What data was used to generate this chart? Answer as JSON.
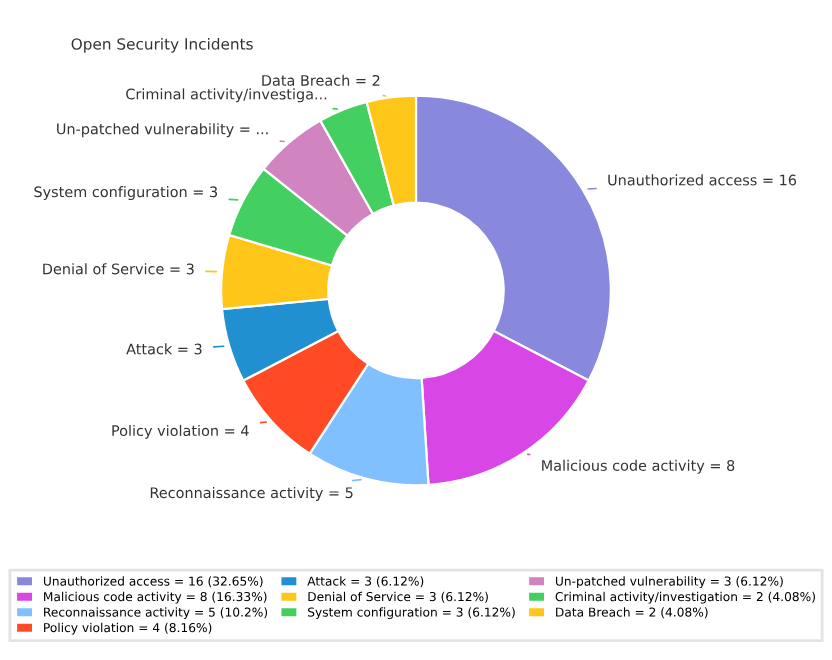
{
  "chart_data": {
    "type": "donut",
    "title": "Open Security Incidents",
    "categories": [
      "Unauthorized access = 16 (32.65%)",
      "Malicious code activity = 8 (16.33%)",
      "Reconnaissance activity = 5 (10.2%)",
      "Policy violation = 4 (8.16%)",
      "Attack = 3 (6.12%)",
      "Denial of Service = 3 (6.12%)",
      "System configuration = 3 (6.12%)",
      "Un-patched vulnerability = 3 (6.12%)",
      "Criminal activity/investigation = 2 (4.08%)",
      "Data Breach = 2 (4.08%)"
    ],
    "values": [
      16,
      8,
      5,
      4,
      3,
      3,
      3,
      3,
      2,
      2
    ],
    "value_labels": [
      "Unauthorized access = 16",
      "Malicious code activity = 8",
      "Reconnaissance activity = 5",
      "Policy violation = 4",
      "Attack = 3",
      "Denial of Service = 3",
      "System configuration = 3",
      "Un-patched vulnerability = ...",
      "Criminal activity/investiga...",
      "Data Breach = 2"
    ],
    "colors": [
      "#8888dd",
      "#d946e6",
      "#80c0ff",
      "#ff4a25",
      "#2090d0",
      "#ffc61a",
      "#44d060",
      "#d084c0",
      "#44d060",
      "#ffc61a"
    ],
    "legend": "bottom"
  }
}
